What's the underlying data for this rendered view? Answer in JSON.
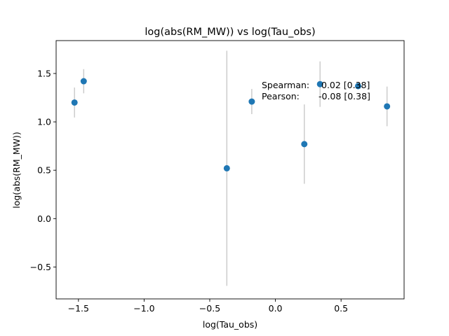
{
  "chart_data": {
    "type": "scatter",
    "title": "log(abs(RM_MW)) vs log(Tau_obs)",
    "xlabel": "log(Tau_obs)",
    "ylabel": "log(abs(RM_MW))",
    "xlim": [
      -1.67,
      0.98
    ],
    "ylim": [
      -0.83,
      1.84
    ],
    "xticks": [
      -1.5,
      -1.0,
      -0.5,
      0.0,
      0.5
    ],
    "xtick_labels": [
      "−1.5",
      "−1.0",
      "−0.5",
      "0.0",
      "0.5"
    ],
    "yticks": [
      -0.5,
      0.0,
      0.5,
      1.0,
      1.5
    ],
    "ytick_labels": [
      "−0.5",
      "0.0",
      "0.5",
      "1.0",
      "1.5"
    ],
    "grid": false,
    "marker_color": "#1f77b4",
    "errorbar_color": "#cccccc",
    "points": [
      {
        "x": -1.53,
        "y": 1.2,
        "yerr": 0.155
      },
      {
        "x": -1.46,
        "y": 1.42,
        "yerr": 0.125
      },
      {
        "x": -0.37,
        "y": 0.52,
        "yerr": 1.215
      },
      {
        "x": -0.18,
        "y": 1.21,
        "yerr": 0.13
      },
      {
        "x": 0.22,
        "y": 0.77,
        "yerr": 0.41
      },
      {
        "x": 0.34,
        "y": 1.39,
        "yerr": 0.235
      },
      {
        "x": 0.63,
        "y": 1.37,
        "yerr": 0.035
      },
      {
        "x": 0.85,
        "y": 1.16,
        "yerr": 0.205
      }
    ],
    "annotations": [
      {
        "label": "Spearman:",
        "value": "0.02 [0.38]"
      },
      {
        "label": "Pearson:",
        "value": "-0.08 [0.38]"
      }
    ]
  }
}
